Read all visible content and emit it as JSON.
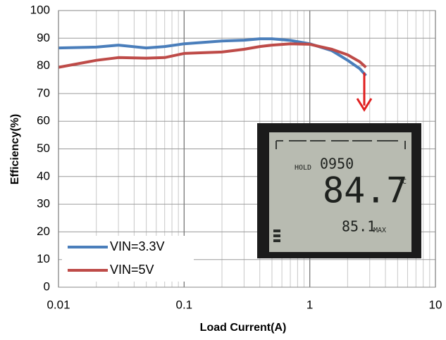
{
  "chart_data": {
    "type": "line",
    "x_label": "Load Current(A)",
    "y_label": "Efficiency(%)",
    "x": [
      0.01,
      0.02,
      0.03,
      0.05,
      0.07,
      0.1,
      0.2,
      0.3,
      0.4,
      0.5,
      0.7,
      1,
      1.5,
      2,
      2.5,
      2.8
    ],
    "series": [
      {
        "name": "VIN=3.3V",
        "color": "#4a7ebb",
        "values": [
          86.5,
          86.8,
          87.5,
          86.5,
          87,
          88,
          89,
          89.3,
          89.8,
          89.8,
          89.2,
          88,
          85.5,
          82,
          79,
          76.5
        ]
      },
      {
        "name": "VIN=5V",
        "color": "#be4b48",
        "values": [
          79.5,
          82,
          83,
          82.8,
          83,
          84.5,
          85,
          86,
          87,
          87.5,
          88,
          87.8,
          86,
          84,
          81.5,
          79.5
        ]
      }
    ],
    "xlim": [
      0.01,
      10
    ],
    "xticks": [
      0.01,
      0.1,
      1,
      10
    ],
    "log_x": true,
    "ylim": [
      0,
      100
    ],
    "yticks": [
      0,
      10,
      20,
      30,
      40,
      50,
      60,
      70,
      80,
      90,
      100
    ],
    "grid": true,
    "legend": "lower left",
    "annotations": [
      "HOLD",
      "0950",
      "84.7",
      "°C",
      "85.1",
      "MAX"
    ]
  }
}
